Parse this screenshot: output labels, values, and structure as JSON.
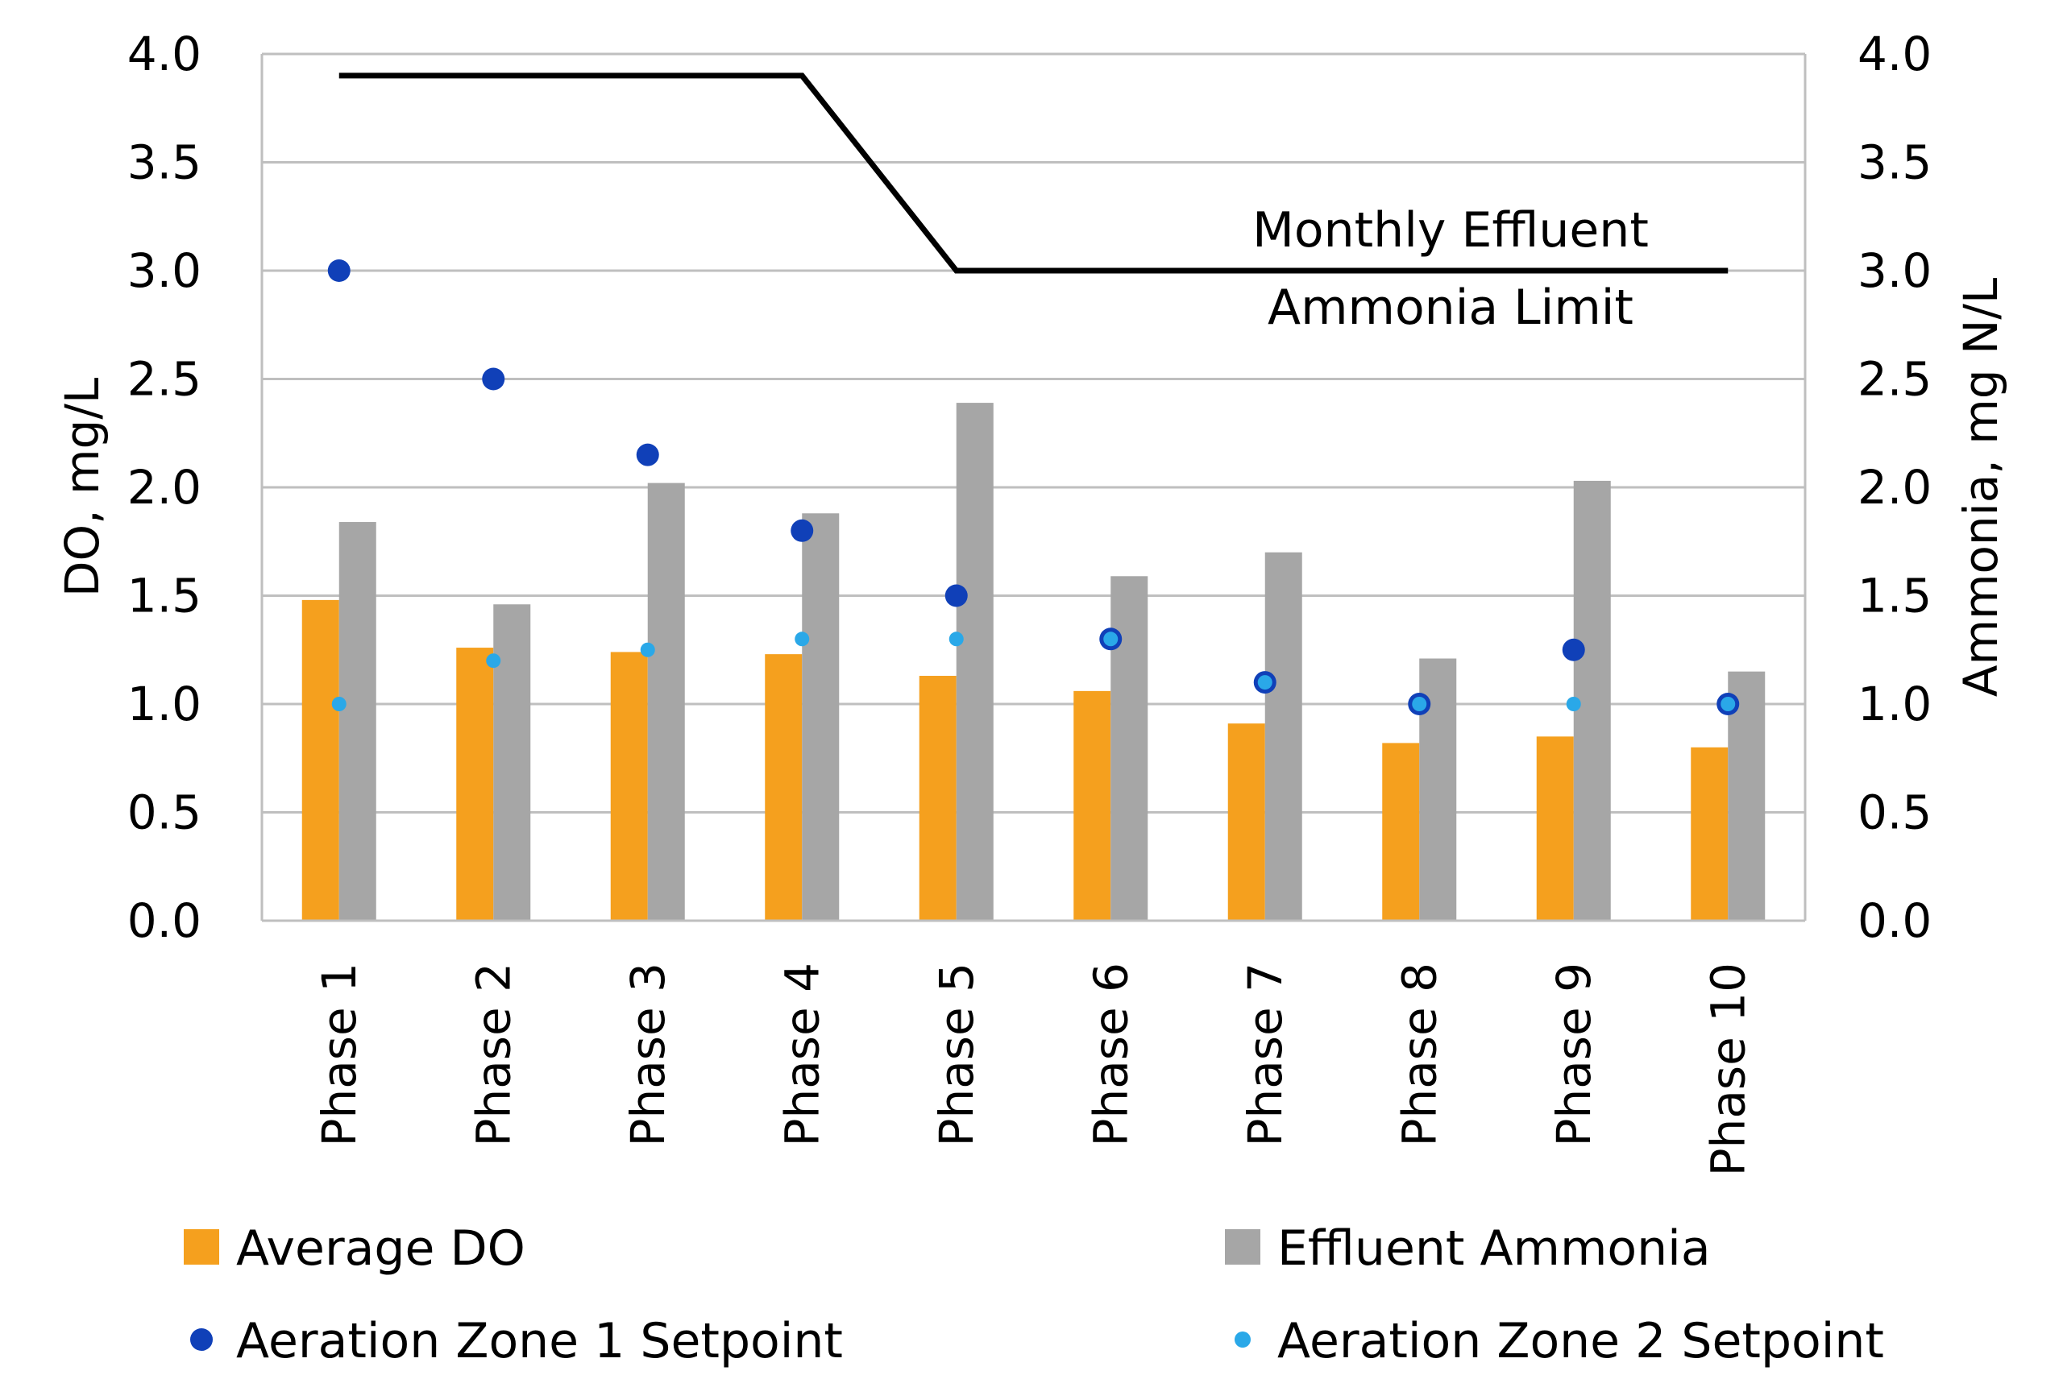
{
  "chart_data": {
    "type": "bar",
    "categories": [
      "Phase 1",
      "Phase 2",
      "Phase 3",
      "Phase 4",
      "Phase 5",
      "Phase 6",
      "Phase 7",
      "Phase 8",
      "Phase 9",
      "Phase 10"
    ],
    "y_left": {
      "label": "DO, mg/L",
      "range": [
        0,
        4
      ],
      "ticks": [
        "0.0",
        "0.5",
        "1.0",
        "1.5",
        "2.0",
        "2.5",
        "3.0",
        "3.5",
        "4.0"
      ]
    },
    "y_right": {
      "label": "Ammonia, mg N/L",
      "range": [
        0,
        4
      ],
      "ticks": [
        "0.0",
        "0.5",
        "1.0",
        "1.5",
        "2.0",
        "2.5",
        "3.0",
        "3.5",
        "4.0"
      ]
    },
    "grid": true,
    "series": [
      {
        "name": "Average DO",
        "kind": "bar",
        "axis": "left",
        "color": "#f5a01e",
        "values": [
          1.48,
          1.26,
          1.24,
          1.23,
          1.13,
          1.06,
          0.91,
          0.82,
          0.85,
          0.8
        ]
      },
      {
        "name": "Effluent Ammonia",
        "kind": "bar",
        "axis": "right",
        "color": "#a6a6a6",
        "values": [
          1.84,
          1.46,
          2.02,
          1.88,
          2.39,
          1.59,
          1.7,
          1.21,
          2.03,
          1.15
        ]
      },
      {
        "name": "Aeration Zone 1 Setpoint",
        "kind": "marker",
        "axis": "left",
        "color": "#1040b8",
        "values": [
          3.0,
          2.5,
          2.15,
          1.8,
          1.5,
          1.3,
          1.1,
          1.0,
          1.25,
          1.0
        ]
      },
      {
        "name": "Aeration Zone 2 Setpoint",
        "kind": "marker",
        "axis": "left",
        "color": "#2aa8e8",
        "values": [
          1.0,
          1.2,
          1.25,
          1.3,
          1.3,
          1.3,
          1.1,
          1.0,
          1.0,
          1.0
        ]
      },
      {
        "kind": "line",
        "axis": "right",
        "color": "#000000",
        "values": [
          3.9,
          3.9,
          3.9,
          3.9,
          3.0,
          3.0,
          3.0,
          3.0,
          3.0,
          3.0
        ]
      }
    ],
    "annotation": [
      "Monthly Effluent",
      "Ammonia Limit"
    ],
    "legend_position": "bottom"
  }
}
